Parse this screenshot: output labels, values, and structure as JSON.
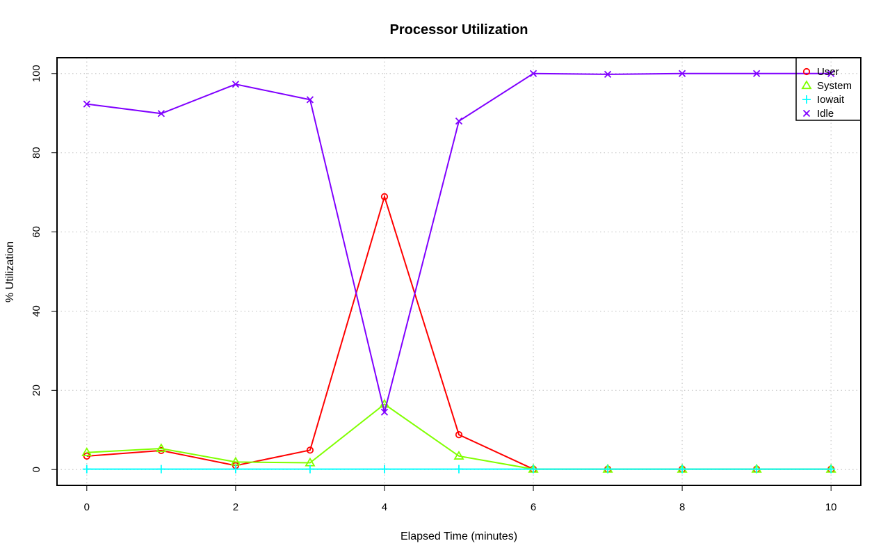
{
  "chart_data": {
    "type": "line",
    "title": "Processor Utilization",
    "xlabel": "Elapsed Time (minutes)",
    "ylabel": "% Utilization",
    "x": [
      0,
      1,
      2,
      3,
      4,
      5,
      6,
      7,
      8,
      9,
      10
    ],
    "xlim": [
      -0.4,
      10.4
    ],
    "ylim": [
      -4,
      104
    ],
    "xticks": [
      0,
      2,
      4,
      6,
      8,
      10
    ],
    "yticks": [
      0,
      20,
      40,
      60,
      80,
      100
    ],
    "grid": true,
    "legend_position": "top-right",
    "series": [
      {
        "name": "User",
        "color": "#ff0000",
        "marker": "circle",
        "values": [
          3.4,
          4.8,
          1.0,
          4.9,
          68.9,
          8.8,
          0.1,
          0.1,
          0.1,
          0.1,
          0.1
        ]
      },
      {
        "name": "System",
        "color": "#80ff00",
        "marker": "triangle",
        "values": [
          4.3,
          5.3,
          1.9,
          1.7,
          16.5,
          3.4,
          0.1,
          0.1,
          0.1,
          0.1,
          0.1
        ]
      },
      {
        "name": "Iowait",
        "color": "#00ffff",
        "marker": "plus",
        "values": [
          0.1,
          0.1,
          0.1,
          0.1,
          0.1,
          0.1,
          0.1,
          0.1,
          0.1,
          0.1,
          0.1
        ]
      },
      {
        "name": "Idle",
        "color": "#8000ff",
        "marker": "cross",
        "values": [
          92.3,
          89.9,
          97.3,
          93.4,
          14.5,
          88.0,
          100.0,
          99.8,
          100.0,
          100.0,
          100.0
        ]
      }
    ]
  }
}
